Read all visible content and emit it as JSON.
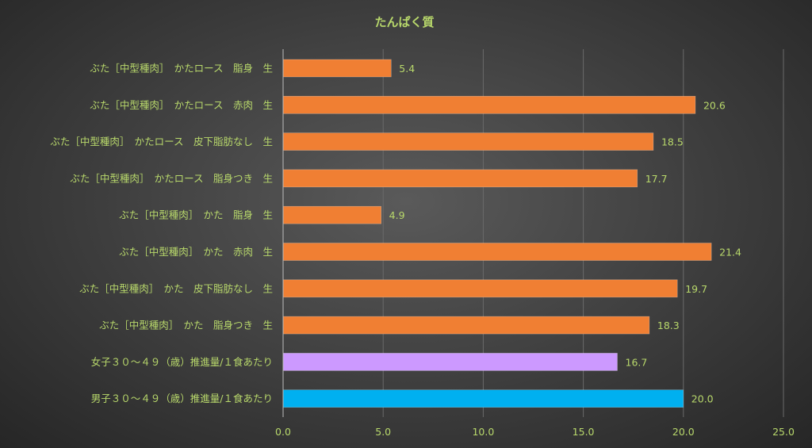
{
  "colors": {
    "text": "#b8d86b",
    "grid": "#6a6a6a",
    "axis": "#bdbdbd",
    "bar_default": "#f07f33",
    "bar_female": "#cc99ff",
    "bar_male": "#00b0f0"
  },
  "chart_data": {
    "type": "bar",
    "orientation": "horizontal",
    "title": "たんぱく質",
    "xlabel": "",
    "ylabel": "",
    "xlim": [
      0,
      25
    ],
    "xticks": [
      "0.0",
      "5.0",
      "10.0",
      "15.0",
      "20.0",
      "25.0"
    ],
    "grid": true,
    "legend": "none",
    "bars": [
      {
        "label": "ぶた［中型種肉］　かたロース　脂身　生",
        "value": 5.4,
        "value_label": "5.4",
        "color": "default"
      },
      {
        "label": "ぶた［中型種肉］　かたロース　赤肉　生",
        "value": 20.6,
        "value_label": "20.6",
        "color": "default"
      },
      {
        "label": "ぶた［中型種肉］　かたロース　皮下脂肪なし　生",
        "value": 18.5,
        "value_label": "18.5",
        "color": "default"
      },
      {
        "label": "ぶた［中型種肉］　かたロース　脂身つき　生",
        "value": 17.7,
        "value_label": "17.7",
        "color": "default"
      },
      {
        "label": "ぶた［中型種肉］　かた　脂身　生",
        "value": 4.9,
        "value_label": "4.9",
        "color": "default"
      },
      {
        "label": "ぶた［中型種肉］　かた　赤肉　生",
        "value": 21.4,
        "value_label": "21.4",
        "color": "default"
      },
      {
        "label": "ぶた［中型種肉］　かた　皮下脂肪なし　生",
        "value": 19.7,
        "value_label": "19.7",
        "color": "default"
      },
      {
        "label": "ぶた［中型種肉］　かた　脂身つき　生",
        "value": 18.3,
        "value_label": "18.3",
        "color": "default"
      },
      {
        "label": "女子３０～４９（歳）推進量/１食あたり",
        "value": 16.7,
        "value_label": "16.7",
        "color": "female"
      },
      {
        "label": "男子３０～４９（歳）推進量/１食あたり",
        "value": 20.0,
        "value_label": "20.0",
        "color": "male"
      }
    ]
  }
}
